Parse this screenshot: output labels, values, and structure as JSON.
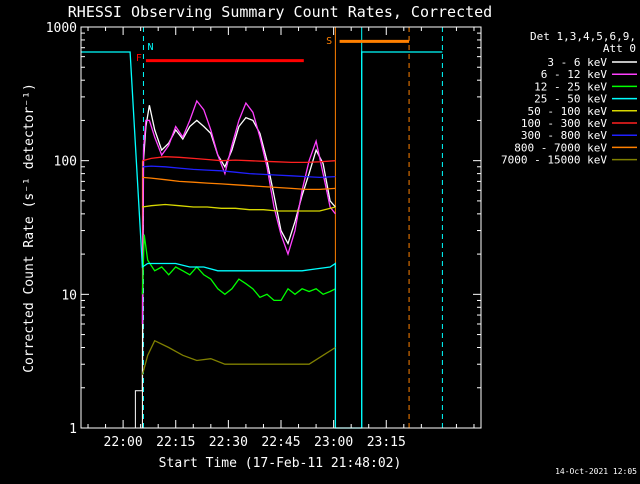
{
  "chart_data": {
    "type": "line",
    "title": "RHESSI Observing Summary Count Rates, Corrected",
    "xlabel": "Start Time (17-Feb-11 21:48:02)",
    "ylabel": "Corrected Count Rate (s⁻¹ detector⁻¹)",
    "footer": "14-Oct-2021 12:05",
    "x_ticks": [
      "22:00",
      "22:15",
      "22:30",
      "22:45",
      "23:00",
      "23:15"
    ],
    "x_tick_minutes": [
      720,
      735,
      750,
      765,
      780,
      795
    ],
    "xlim_minutes": [
      708.0,
      822.0
    ],
    "y_scale": "log",
    "ylim": [
      1,
      1000
    ],
    "y_ticks": [
      "1",
      "10",
      "100",
      "1000"
    ],
    "legend_header": [
      "Det 1,3,4,5,6,9,",
      "Att 0"
    ],
    "legend_position": "right",
    "series": [
      {
        "name": "3 - 6 keV",
        "color": "#ffffff",
        "points": [
          [
            725.5,
            1.9
          ],
          [
            725.8,
            100
          ],
          [
            726.5,
            180
          ],
          [
            727.5,
            260
          ],
          [
            729,
            170
          ],
          [
            731,
            120
          ],
          [
            733,
            135
          ],
          [
            735,
            170
          ],
          [
            737,
            145
          ],
          [
            739,
            180
          ],
          [
            741,
            200
          ],
          [
            743,
            180
          ],
          [
            745,
            160
          ],
          [
            747,
            110
          ],
          [
            749,
            90
          ],
          [
            751,
            120
          ],
          [
            753,
            180
          ],
          [
            755,
            210
          ],
          [
            757,
            200
          ],
          [
            759,
            160
          ],
          [
            761,
            100
          ],
          [
            763,
            55
          ],
          [
            765,
            30
          ],
          [
            767,
            24
          ],
          [
            769,
            35
          ],
          [
            771,
            55
          ],
          [
            773,
            80
          ],
          [
            775,
            120
          ],
          [
            777,
            95
          ],
          [
            779,
            50
          ],
          [
            780.5,
            45
          ]
        ]
      },
      {
        "name": "6 - 12 keV",
        "color": "#ff40ff",
        "points": [
          [
            725.5,
            6
          ],
          [
            725.8,
            120
          ],
          [
            726.5,
            200
          ],
          [
            727.5,
            200
          ],
          [
            729,
            150
          ],
          [
            731,
            110
          ],
          [
            733,
            130
          ],
          [
            735,
            180
          ],
          [
            737,
            150
          ],
          [
            739,
            200
          ],
          [
            741,
            280
          ],
          [
            743,
            240
          ],
          [
            745,
            170
          ],
          [
            747,
            110
          ],
          [
            749,
            80
          ],
          [
            751,
            130
          ],
          [
            753,
            200
          ],
          [
            755,
            270
          ],
          [
            757,
            230
          ],
          [
            759,
            150
          ],
          [
            761,
            90
          ],
          [
            763,
            45
          ],
          [
            765,
            28
          ],
          [
            767,
            20
          ],
          [
            769,
            30
          ],
          [
            771,
            60
          ],
          [
            773,
            100
          ],
          [
            775,
            140
          ],
          [
            777,
            80
          ],
          [
            779,
            45
          ],
          [
            780.5,
            40
          ]
        ]
      },
      {
        "name": "12 - 25 keV",
        "color": "#00ff00",
        "points": [
          [
            725.5,
            10
          ],
          [
            726,
            28
          ],
          [
            727,
            18
          ],
          [
            729,
            15
          ],
          [
            731,
            16
          ],
          [
            733,
            14
          ],
          [
            735,
            16
          ],
          [
            737,
            15
          ],
          [
            739,
            14
          ],
          [
            741,
            16
          ],
          [
            743,
            14
          ],
          [
            745,
            13
          ],
          [
            747,
            11
          ],
          [
            749,
            10
          ],
          [
            751,
            11
          ],
          [
            753,
            13
          ],
          [
            755,
            12
          ],
          [
            757,
            11
          ],
          [
            759,
            9.5
          ],
          [
            761,
            10
          ],
          [
            763,
            9
          ],
          [
            765,
            9
          ],
          [
            767,
            11
          ],
          [
            769,
            10
          ],
          [
            771,
            11
          ],
          [
            773,
            10.5
          ],
          [
            775,
            11
          ],
          [
            777,
            10
          ],
          [
            779,
            10.5
          ],
          [
            780.5,
            11
          ]
        ]
      },
      {
        "name": "25 - 50 keV",
        "color": "#00ffff",
        "points": [
          [
            708,
            650
          ],
          [
            722,
            650
          ],
          [
            722,
            650
          ],
          [
            725.5,
            16
          ],
          [
            727,
            17
          ],
          [
            731,
            17
          ],
          [
            735,
            17
          ],
          [
            739,
            16
          ],
          [
            743,
            16
          ],
          [
            747,
            15
          ],
          [
            751,
            15
          ],
          [
            755,
            15
          ],
          [
            759,
            15
          ],
          [
            763,
            15
          ],
          [
            767,
            15
          ],
          [
            771,
            15
          ],
          [
            775,
            15.5
          ],
          [
            779,
            16
          ],
          [
            780.5,
            17
          ],
          [
            780.5,
            1
          ],
          [
            788,
            1
          ],
          [
            788,
            650
          ],
          [
            811,
            650
          ]
        ]
      },
      {
        "name": "50 - 100 keV",
        "color": "#d8d800",
        "points": [
          [
            725.5,
            45
          ],
          [
            728,
            46
          ],
          [
            732,
            47
          ],
          [
            736,
            46
          ],
          [
            740,
            45
          ],
          [
            744,
            45
          ],
          [
            748,
            44
          ],
          [
            752,
            44
          ],
          [
            756,
            43
          ],
          [
            760,
            43
          ],
          [
            764,
            42
          ],
          [
            768,
            42
          ],
          [
            772,
            42
          ],
          [
            776,
            42
          ],
          [
            780.5,
            45
          ]
        ]
      },
      {
        "name": "100 - 300 keV",
        "color": "#ff2020",
        "points": [
          [
            725.5,
            100
          ],
          [
            728,
            104
          ],
          [
            732,
            107
          ],
          [
            736,
            106
          ],
          [
            740,
            104
          ],
          [
            744,
            102
          ],
          [
            748,
            100
          ],
          [
            752,
            101
          ],
          [
            756,
            100
          ],
          [
            760,
            99
          ],
          [
            764,
            98
          ],
          [
            768,
            97
          ],
          [
            772,
            97
          ],
          [
            776,
            98
          ],
          [
            780.5,
            100
          ]
        ]
      },
      {
        "name": "300 - 800 keV",
        "color": "#2020ff",
        "points": [
          [
            725.5,
            90
          ],
          [
            728,
            91
          ],
          [
            732,
            90
          ],
          [
            736,
            88
          ],
          [
            740,
            86
          ],
          [
            744,
            85
          ],
          [
            748,
            84
          ],
          [
            752,
            82
          ],
          [
            756,
            80
          ],
          [
            760,
            79
          ],
          [
            764,
            78
          ],
          [
            768,
            77
          ],
          [
            772,
            76
          ],
          [
            776,
            75
          ],
          [
            780.5,
            76
          ]
        ]
      },
      {
        "name": "800 - 7000 keV",
        "color": "#ff8000",
        "points": [
          [
            725.5,
            75
          ],
          [
            728,
            74
          ],
          [
            732,
            72
          ],
          [
            736,
            70
          ],
          [
            740,
            69
          ],
          [
            744,
            68
          ],
          [
            748,
            67
          ],
          [
            752,
            66
          ],
          [
            756,
            65
          ],
          [
            760,
            64
          ],
          [
            764,
            63
          ],
          [
            768,
            62
          ],
          [
            772,
            61
          ],
          [
            776,
            61
          ],
          [
            780.5,
            62
          ]
        ]
      },
      {
        "name": "7000 - 15000 keV",
        "color": "#808000",
        "points": [
          [
            725.5,
            2.5
          ],
          [
            727,
            3.5
          ],
          [
            729,
            4.5
          ],
          [
            733,
            4
          ],
          [
            737,
            3.5
          ],
          [
            741,
            3.2
          ],
          [
            745,
            3.3
          ],
          [
            749,
            3
          ],
          [
            753,
            3
          ],
          [
            757,
            3
          ],
          [
            761,
            3
          ],
          [
            765,
            3
          ],
          [
            769,
            3
          ],
          [
            773,
            3
          ],
          [
            777,
            3.5
          ],
          [
            780.5,
            4
          ]
        ]
      }
    ],
    "annotations": [
      {
        "label": "N",
        "color": "#00ffff",
        "x_minutes": 725.8
      },
      {
        "label": "F",
        "color": "#ff0000",
        "x_minutes": 726.5
      },
      {
        "label": "S",
        "color": "#ff8000",
        "x_minutes": 780.7
      }
    ],
    "flare_bar": {
      "color": "#ff0000",
      "x": [
        726.5,
        771.5
      ],
      "y": 560
    },
    "saa_bar": {
      "color": "#ff8000",
      "x": [
        781.7,
        801.5
      ],
      "y": 780
    },
    "night_intervals": [
      [
        708,
        725.8
      ],
      [
        788,
        811
      ]
    ],
    "saa_interval": [
      780.5,
      801.5
    ],
    "attenuator_block": {
      "color": "#000000",
      "x": [
        723.5,
        725.5
      ],
      "y": [
        1,
        1.9
      ]
    }
  }
}
